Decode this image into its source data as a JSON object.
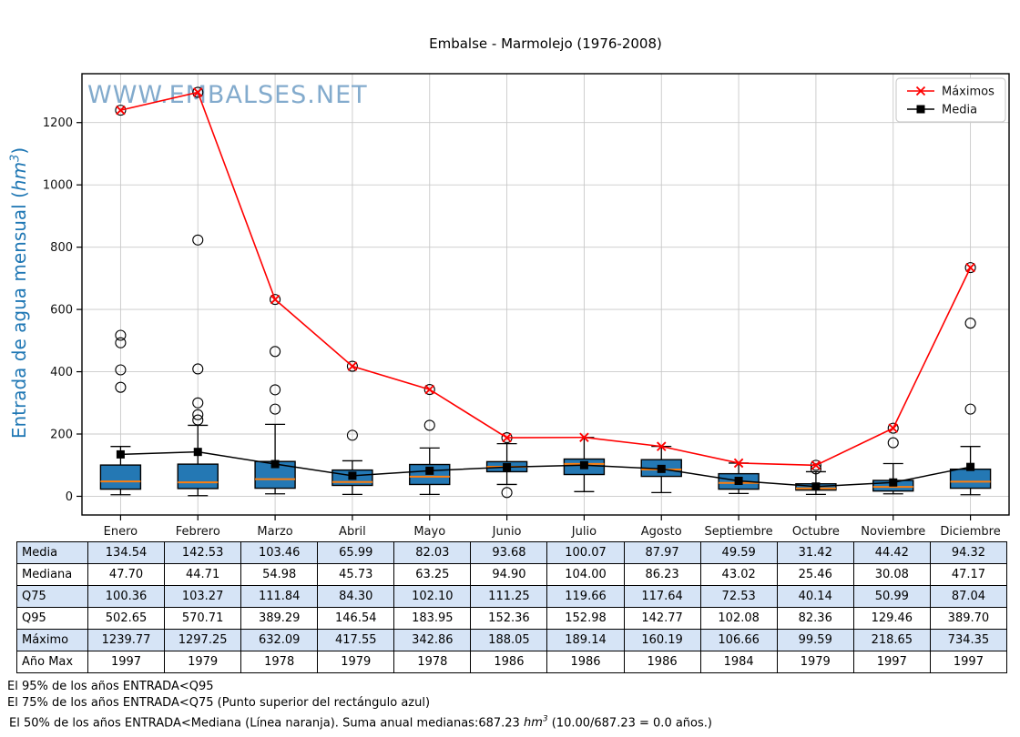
{
  "page": {
    "watermark": "WWW.EMBALSES.NET"
  },
  "ylabel": {
    "prefix": "Entrada de agua mensual (",
    "unit": "hm",
    "sup": "3",
    "suffix": ")"
  },
  "chart_data": {
    "type": "boxplot-with-lines",
    "title": "Embalse - Marmolejo (1976-2008)",
    "months": [
      "Enero",
      "Febrero",
      "Marzo",
      "Abril",
      "Mayo",
      "Junio",
      "Julio",
      "Agosto",
      "Septiembre",
      "Octubre",
      "Noviembre",
      "Diciembre"
    ],
    "ylim": [
      -60,
      1357
    ],
    "yticks": [
      0,
      200,
      400,
      600,
      800,
      1000,
      1200
    ],
    "grid": true,
    "legend_position": "upper-right",
    "series": [
      {
        "name": "Máximos",
        "color": "#ff0000",
        "marker": "x",
        "values": [
          1239.77,
          1297.25,
          632.09,
          417.55,
          342.86,
          188.05,
          189.14,
          160.19,
          106.66,
          99.59,
          218.65,
          734.35
        ]
      },
      {
        "name": "Media",
        "color": "#000000",
        "marker": "square",
        "values": [
          134.54,
          142.53,
          103.46,
          65.99,
          82.03,
          93.68,
          100.07,
          87.97,
          49.59,
          31.42,
          44.42,
          94.32
        ]
      }
    ],
    "boxes": [
      {
        "month": "Enero",
        "q1": 23,
        "median": 47.7,
        "q3": 100.36,
        "whislo": 5,
        "whishi": 160,
        "outliers": [
          350,
          406,
          493,
          517
        ],
        "max_circled": true
      },
      {
        "month": "Febrero",
        "q1": 25,
        "median": 44.71,
        "q3": 103.27,
        "whislo": 2,
        "whishi": 228,
        "outliers": [
          245,
          262,
          300,
          409,
          823
        ],
        "max_circled": true
      },
      {
        "month": "Marzo",
        "q1": 26,
        "median": 54.98,
        "q3": 111.84,
        "whislo": 8,
        "whishi": 231,
        "outliers": [
          280,
          342,
          465
        ],
        "max_circled": true
      },
      {
        "month": "Abril",
        "q1": 35,
        "median": 45.73,
        "q3": 84.3,
        "whislo": 6,
        "whishi": 114,
        "outliers": [
          196
        ],
        "max_circled": true
      },
      {
        "month": "Mayo",
        "q1": 38,
        "median": 63.25,
        "q3": 102.1,
        "whislo": 6,
        "whishi": 155,
        "outliers": [
          228
        ],
        "max_circled": true
      },
      {
        "month": "Junio",
        "q1": 79,
        "median": 94.9,
        "q3": 111.25,
        "whislo": 38,
        "whishi": 169,
        "outliers": [
          12
        ],
        "max_circled": true
      },
      {
        "month": "Julio",
        "q1": 70,
        "median": 104.0,
        "q3": 119.66,
        "whislo": 15,
        "whishi": 189.14,
        "outliers": [],
        "max_circled": false
      },
      {
        "month": "Agosto",
        "q1": 64,
        "median": 86.23,
        "q3": 117.64,
        "whislo": 12,
        "whishi": 160.19,
        "outliers": [],
        "max_circled": false
      },
      {
        "month": "Septiembre",
        "q1": 23,
        "median": 43.02,
        "q3": 72.53,
        "whislo": 9,
        "whishi": 106.66,
        "outliers": [],
        "max_circled": false
      },
      {
        "month": "Octubre",
        "q1": 20,
        "median": 25.46,
        "q3": 40.14,
        "whislo": 6,
        "whishi": 79,
        "outliers": [
          88
        ],
        "max_circled": true
      },
      {
        "month": "Noviembre",
        "q1": 17,
        "median": 30.08,
        "q3": 50.99,
        "whislo": 8,
        "whishi": 105,
        "outliers": [
          172
        ],
        "max_circled": true
      },
      {
        "month": "Diciembre",
        "q1": 26,
        "median": 47.17,
        "q3": 87.04,
        "whislo": 5,
        "whishi": 160,
        "outliers": [
          280,
          556
        ],
        "max_circled": true
      }
    ],
    "colors": {
      "box_fill": "#2478b4",
      "box_edge": "#000000",
      "median_line": "#ff7f0e",
      "maximos_red": "#ff0000",
      "media_black": "#000000",
      "grid": "#c9c9c9",
      "watermark": "#76a3c8",
      "axis_label_blue": "#1f77b4"
    }
  },
  "table": {
    "rows": [
      {
        "label": "Media",
        "values": [
          "134.54",
          "142.53",
          "103.46",
          "65.99",
          "82.03",
          "93.68",
          "100.07",
          "87.97",
          "49.59",
          "31.42",
          "44.42",
          "94.32"
        ]
      },
      {
        "label": "Mediana",
        "values": [
          "47.70",
          "44.71",
          "54.98",
          "45.73",
          "63.25",
          "94.90",
          "104.00",
          "86.23",
          "43.02",
          "25.46",
          "30.08",
          "47.17"
        ]
      },
      {
        "label": "Q75",
        "values": [
          "100.36",
          "103.27",
          "111.84",
          "84.30",
          "102.10",
          "111.25",
          "119.66",
          "117.64",
          "72.53",
          "40.14",
          "50.99",
          "87.04"
        ]
      },
      {
        "label": "Q95",
        "values": [
          "502.65",
          "570.71",
          "389.29",
          "146.54",
          "183.95",
          "152.36",
          "152.98",
          "142.77",
          "102.08",
          "82.36",
          "129.46",
          "389.70"
        ]
      },
      {
        "label": "Máximo",
        "values": [
          "1239.77",
          "1297.25",
          "632.09",
          "417.55",
          "342.86",
          "188.05",
          "189.14",
          "160.19",
          "106.66",
          "99.59",
          "218.65",
          "734.35"
        ]
      },
      {
        "label": "Año Max",
        "values": [
          "1997",
          "1979",
          "1978",
          "1979",
          "1978",
          "1986",
          "1986",
          "1986",
          "1984",
          "1979",
          "1997",
          "1997"
        ]
      }
    ],
    "band_color": "#d6e4f6"
  },
  "notes": {
    "q95": "El 95% de los años ENTRADA<Q95",
    "q75": "El 75% de los años ENTRADA<Q75 (Punto superior del rectángulo azul)",
    "median_prefix": "El 50% de los años ENTRADA<Mediana (Línea naranja). Suma anual medianas:687.23 ",
    "median_unit": "hm",
    "median_sup": "3",
    "median_suffix": " (10.00/687.23 = 0.0 años.)"
  }
}
